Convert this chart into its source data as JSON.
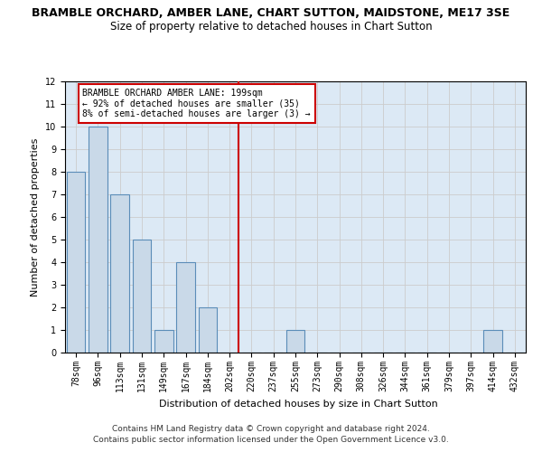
{
  "title1": "BRAMBLE ORCHARD, AMBER LANE, CHART SUTTON, MAIDSTONE, ME17 3SE",
  "title2": "Size of property relative to detached houses in Chart Sutton",
  "xlabel": "Distribution of detached houses by size in Chart Sutton",
  "ylabel": "Number of detached properties",
  "categories": [
    "78sqm",
    "96sqm",
    "113sqm",
    "131sqm",
    "149sqm",
    "167sqm",
    "184sqm",
    "202sqm",
    "220sqm",
    "237sqm",
    "255sqm",
    "273sqm",
    "290sqm",
    "308sqm",
    "326sqm",
    "344sqm",
    "361sqm",
    "379sqm",
    "397sqm",
    "414sqm",
    "432sqm"
  ],
  "values": [
    8,
    10,
    7,
    5,
    1,
    4,
    2,
    0,
    0,
    0,
    1,
    0,
    0,
    0,
    0,
    0,
    0,
    0,
    0,
    1,
    0
  ],
  "bar_color": "#c9d9e8",
  "bar_edge_color": "#5b8db8",
  "vline_x_index": 7,
  "vline_color": "#cc0000",
  "annotation_text": "BRAMBLE ORCHARD AMBER LANE: 199sqm\n← 92% of detached houses are smaller (35)\n8% of semi-detached houses are larger (3) →",
  "annotation_box_color": "#ffffff",
  "annotation_box_edge": "#cc0000",
  "ylim": [
    0,
    12
  ],
  "yticks": [
    0,
    1,
    2,
    3,
    4,
    5,
    6,
    7,
    8,
    9,
    10,
    11,
    12
  ],
  "grid_color": "#cccccc",
  "bg_color": "#dce9f5",
  "footer1": "Contains HM Land Registry data © Crown copyright and database right 2024.",
  "footer2": "Contains public sector information licensed under the Open Government Licence v3.0.",
  "title1_fontsize": 9,
  "title2_fontsize": 8.5,
  "xlabel_fontsize": 8,
  "ylabel_fontsize": 8,
  "tick_fontsize": 7,
  "annotation_fontsize": 7,
  "footer_fontsize": 6.5
}
